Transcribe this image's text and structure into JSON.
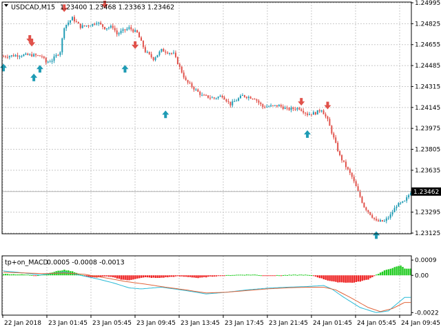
{
  "colors": {
    "background": "#ffffff",
    "grid": "#c8c8c8",
    "frame": "#000000",
    "bull": "#1e9bb4",
    "bear": "#e0514a",
    "macd_positive": "#22cc22",
    "macd_negative": "#ee2222",
    "signal_line_1": "#27b9d6",
    "signal_line_2": "#e0643a",
    "price_label_bg": "#000000",
    "price_label_text": "#ffffff"
  },
  "main_header": {
    "symbol_timeframe": "USDCAD,M15",
    "ohlc": "1.23400 1.23468 1.23363 1.23462"
  },
  "indicator_header": {
    "name": "tp+on_MACD",
    "values": "0.0005 -0.0008 -0.0013"
  },
  "current_price_label": "1.23462",
  "chart_data": [
    {
      "type": "candlestick",
      "symbol": "USDCAD",
      "timeframe": "M15",
      "price_axis": {
        "ylim": [
          1.23125,
          1.24995
        ],
        "ticks": [
          "1.24995",
          "1.24825",
          "1.24655",
          "1.24485",
          "1.24315",
          "1.24145",
          "1.23975",
          "1.23805",
          "1.23635",
          "1.23465",
          "1.23295",
          "1.23125"
        ]
      },
      "time_axis": {
        "ticks": [
          "22 Jan 2018",
          "23 Jan 01:45",
          "23 Jan 05:45",
          "23 Jan 09:45",
          "23 Jan 13:45",
          "23 Jan 17:45",
          "23 Jan 21:45",
          "24 Jan 01:45",
          "24 Jan 05:45",
          "24 Jan 09:45"
        ]
      },
      "current_price": 1.23462,
      "close_path": [
        [
          0,
          1.2456
        ],
        [
          8,
          1.2457
        ],
        [
          14,
          1.2457
        ],
        [
          19,
          1.2456
        ],
        [
          21,
          1.2451
        ],
        [
          24,
          1.2453
        ],
        [
          28,
          1.246
        ],
        [
          30,
          1.248
        ],
        [
          34,
          1.2487
        ],
        [
          38,
          1.248
        ],
        [
          44,
          1.2482
        ],
        [
          46,
          1.2484
        ],
        [
          50,
          1.2479
        ],
        [
          54,
          1.248
        ],
        [
          56,
          1.2474
        ],
        [
          58,
          1.2476
        ],
        [
          62,
          1.2479
        ],
        [
          66,
          1.2475
        ],
        [
          70,
          1.246
        ],
        [
          74,
          1.2454
        ],
        [
          78,
          1.2461
        ],
        [
          84,
          1.2458
        ],
        [
          90,
          1.2436
        ],
        [
          98,
          1.2424
        ],
        [
          104,
          1.2422
        ],
        [
          108,
          1.2424
        ],
        [
          112,
          1.2417
        ],
        [
          118,
          1.2424
        ],
        [
          124,
          1.2422
        ],
        [
          128,
          1.2415
        ],
        [
          136,
          1.2416
        ],
        [
          140,
          1.2413
        ],
        [
          146,
          1.2414
        ],
        [
          150,
          1.2409
        ],
        [
          154,
          1.241
        ],
        [
          157,
          1.2413
        ],
        [
          160,
          1.2404
        ],
        [
          166,
          1.2375
        ],
        [
          172,
          1.2358
        ],
        [
          178,
          1.2334
        ],
        [
          184,
          1.2322
        ],
        [
          188,
          1.2322
        ],
        [
          191,
          1.2327
        ],
        [
          194,
          1.2335
        ],
        [
          198,
          1.2338
        ],
        [
          201,
          1.2346
        ]
      ],
      "signal_arrows": [
        {
          "type": "up",
          "x": 0,
          "price": 1.245
        },
        {
          "type": "down",
          "x": 13,
          "price": 1.2467
        },
        {
          "type": "down",
          "x": 14,
          "price": 1.2464
        },
        {
          "type": "up",
          "x": 15,
          "price": 1.2442
        },
        {
          "type": "up",
          "x": 18,
          "price": 1.2449
        },
        {
          "type": "down",
          "x": 30,
          "price": 1.2492
        },
        {
          "type": "down",
          "x": 50,
          "price": 1.2495
        },
        {
          "type": "up",
          "x": 60,
          "price": 1.2449
        },
        {
          "type": "down",
          "x": 65,
          "price": 1.2462
        },
        {
          "type": "up",
          "x": 80,
          "price": 1.2412
        },
        {
          "type": "down",
          "x": 147,
          "price": 1.2416
        },
        {
          "type": "up",
          "x": 150,
          "price": 1.2396
        },
        {
          "type": "down",
          "x": 160,
          "price": 1.2413
        },
        {
          "type": "up",
          "x": 184,
          "price": 1.2314
        }
      ]
    },
    {
      "type": "histogram",
      "name": "tp+on_MACD",
      "value_axis": {
        "ylim": [
          -0.00235,
          0.00115
        ],
        "ticks": [
          "0.0009",
          "0.00",
          "-0.0022"
        ]
      },
      "histogram_path": [
        [
          0,
          8e-05
        ],
        [
          10,
          5e-05
        ],
        [
          16,
          0.0
        ],
        [
          22,
          0.0001
        ],
        [
          26,
          0.00024
        ],
        [
          30,
          0.00032
        ],
        [
          34,
          0.00024
        ],
        [
          38,
          4e-05
        ],
        [
          42,
          -0.0001
        ],
        [
          46,
          -0.00014
        ],
        [
          50,
          -6e-05
        ],
        [
          54,
          -0.00012
        ],
        [
          58,
          -0.00024
        ],
        [
          62,
          -0.0003
        ],
        [
          66,
          -0.00018
        ],
        [
          70,
          -0.00012
        ],
        [
          76,
          -0.00016
        ],
        [
          82,
          -0.0001
        ],
        [
          86,
          -6e-05
        ],
        [
          92,
          -0.0001
        ],
        [
          96,
          -0.00016
        ],
        [
          102,
          -8e-05
        ],
        [
          108,
          -2e-05
        ],
        [
          112,
          2e-05
        ],
        [
          118,
          4e-05
        ],
        [
          124,
          4e-05
        ],
        [
          130,
          -2e-05
        ],
        [
          140,
          2e-05
        ],
        [
          148,
          4e-05
        ],
        [
          152,
          -0.0
        ],
        [
          160,
          -0.0003
        ],
        [
          164,
          -0.0004
        ],
        [
          172,
          -0.00044
        ],
        [
          176,
          -0.00036
        ],
        [
          180,
          -0.00024
        ],
        [
          184,
          4e-05
        ],
        [
          188,
          0.00028
        ],
        [
          192,
          0.00044
        ],
        [
          196,
          0.00058
        ],
        [
          198,
          0.0004
        ]
      ],
      "line_path_1": [
        [
          0,
          0.00026
        ],
        [
          10,
          0.00014
        ],
        [
          18,
          2e-05
        ],
        [
          24,
          0.0001
        ],
        [
          30,
          0.0002
        ],
        [
          38,
          0.0
        ],
        [
          46,
          -0.0002
        ],
        [
          54,
          -0.00044
        ],
        [
          62,
          -0.00074
        ],
        [
          68,
          -0.0008
        ],
        [
          78,
          -0.0007
        ],
        [
          90,
          -0.0009
        ],
        [
          100,
          -0.0011
        ],
        [
          110,
          -0.001
        ],
        [
          120,
          -0.00086
        ],
        [
          130,
          -0.00076
        ],
        [
          140,
          -0.0007
        ],
        [
          150,
          -0.00066
        ],
        [
          158,
          -0.0006
        ],
        [
          162,
          -0.0008
        ],
        [
          168,
          -0.0013
        ],
        [
          176,
          -0.0019
        ],
        [
          184,
          -0.0022
        ],
        [
          190,
          -0.0021
        ],
        [
          194,
          -0.0017
        ],
        [
          198,
          -0.0013
        ]
      ],
      "line_path_2": [
        [
          0,
          0.00018
        ],
        [
          10,
          0.00014
        ],
        [
          20,
          0.0001
        ],
        [
          30,
          0.00014
        ],
        [
          40,
          6e-05
        ],
        [
          50,
          -0.00014
        ],
        [
          60,
          -0.00036
        ],
        [
          70,
          -0.00052
        ],
        [
          80,
          -0.0007
        ],
        [
          90,
          -0.00086
        ],
        [
          100,
          -0.00104
        ],
        [
          110,
          -0.001
        ],
        [
          120,
          -0.0009
        ],
        [
          130,
          -0.0008
        ],
        [
          140,
          -0.00074
        ],
        [
          150,
          -0.0007
        ],
        [
          158,
          -0.0007
        ],
        [
          164,
          -0.00086
        ],
        [
          172,
          -0.00136
        ],
        [
          180,
          -0.0019
        ],
        [
          186,
          -0.00214
        ],
        [
          192,
          -0.00196
        ],
        [
          198,
          -0.0016
        ]
      ]
    }
  ]
}
